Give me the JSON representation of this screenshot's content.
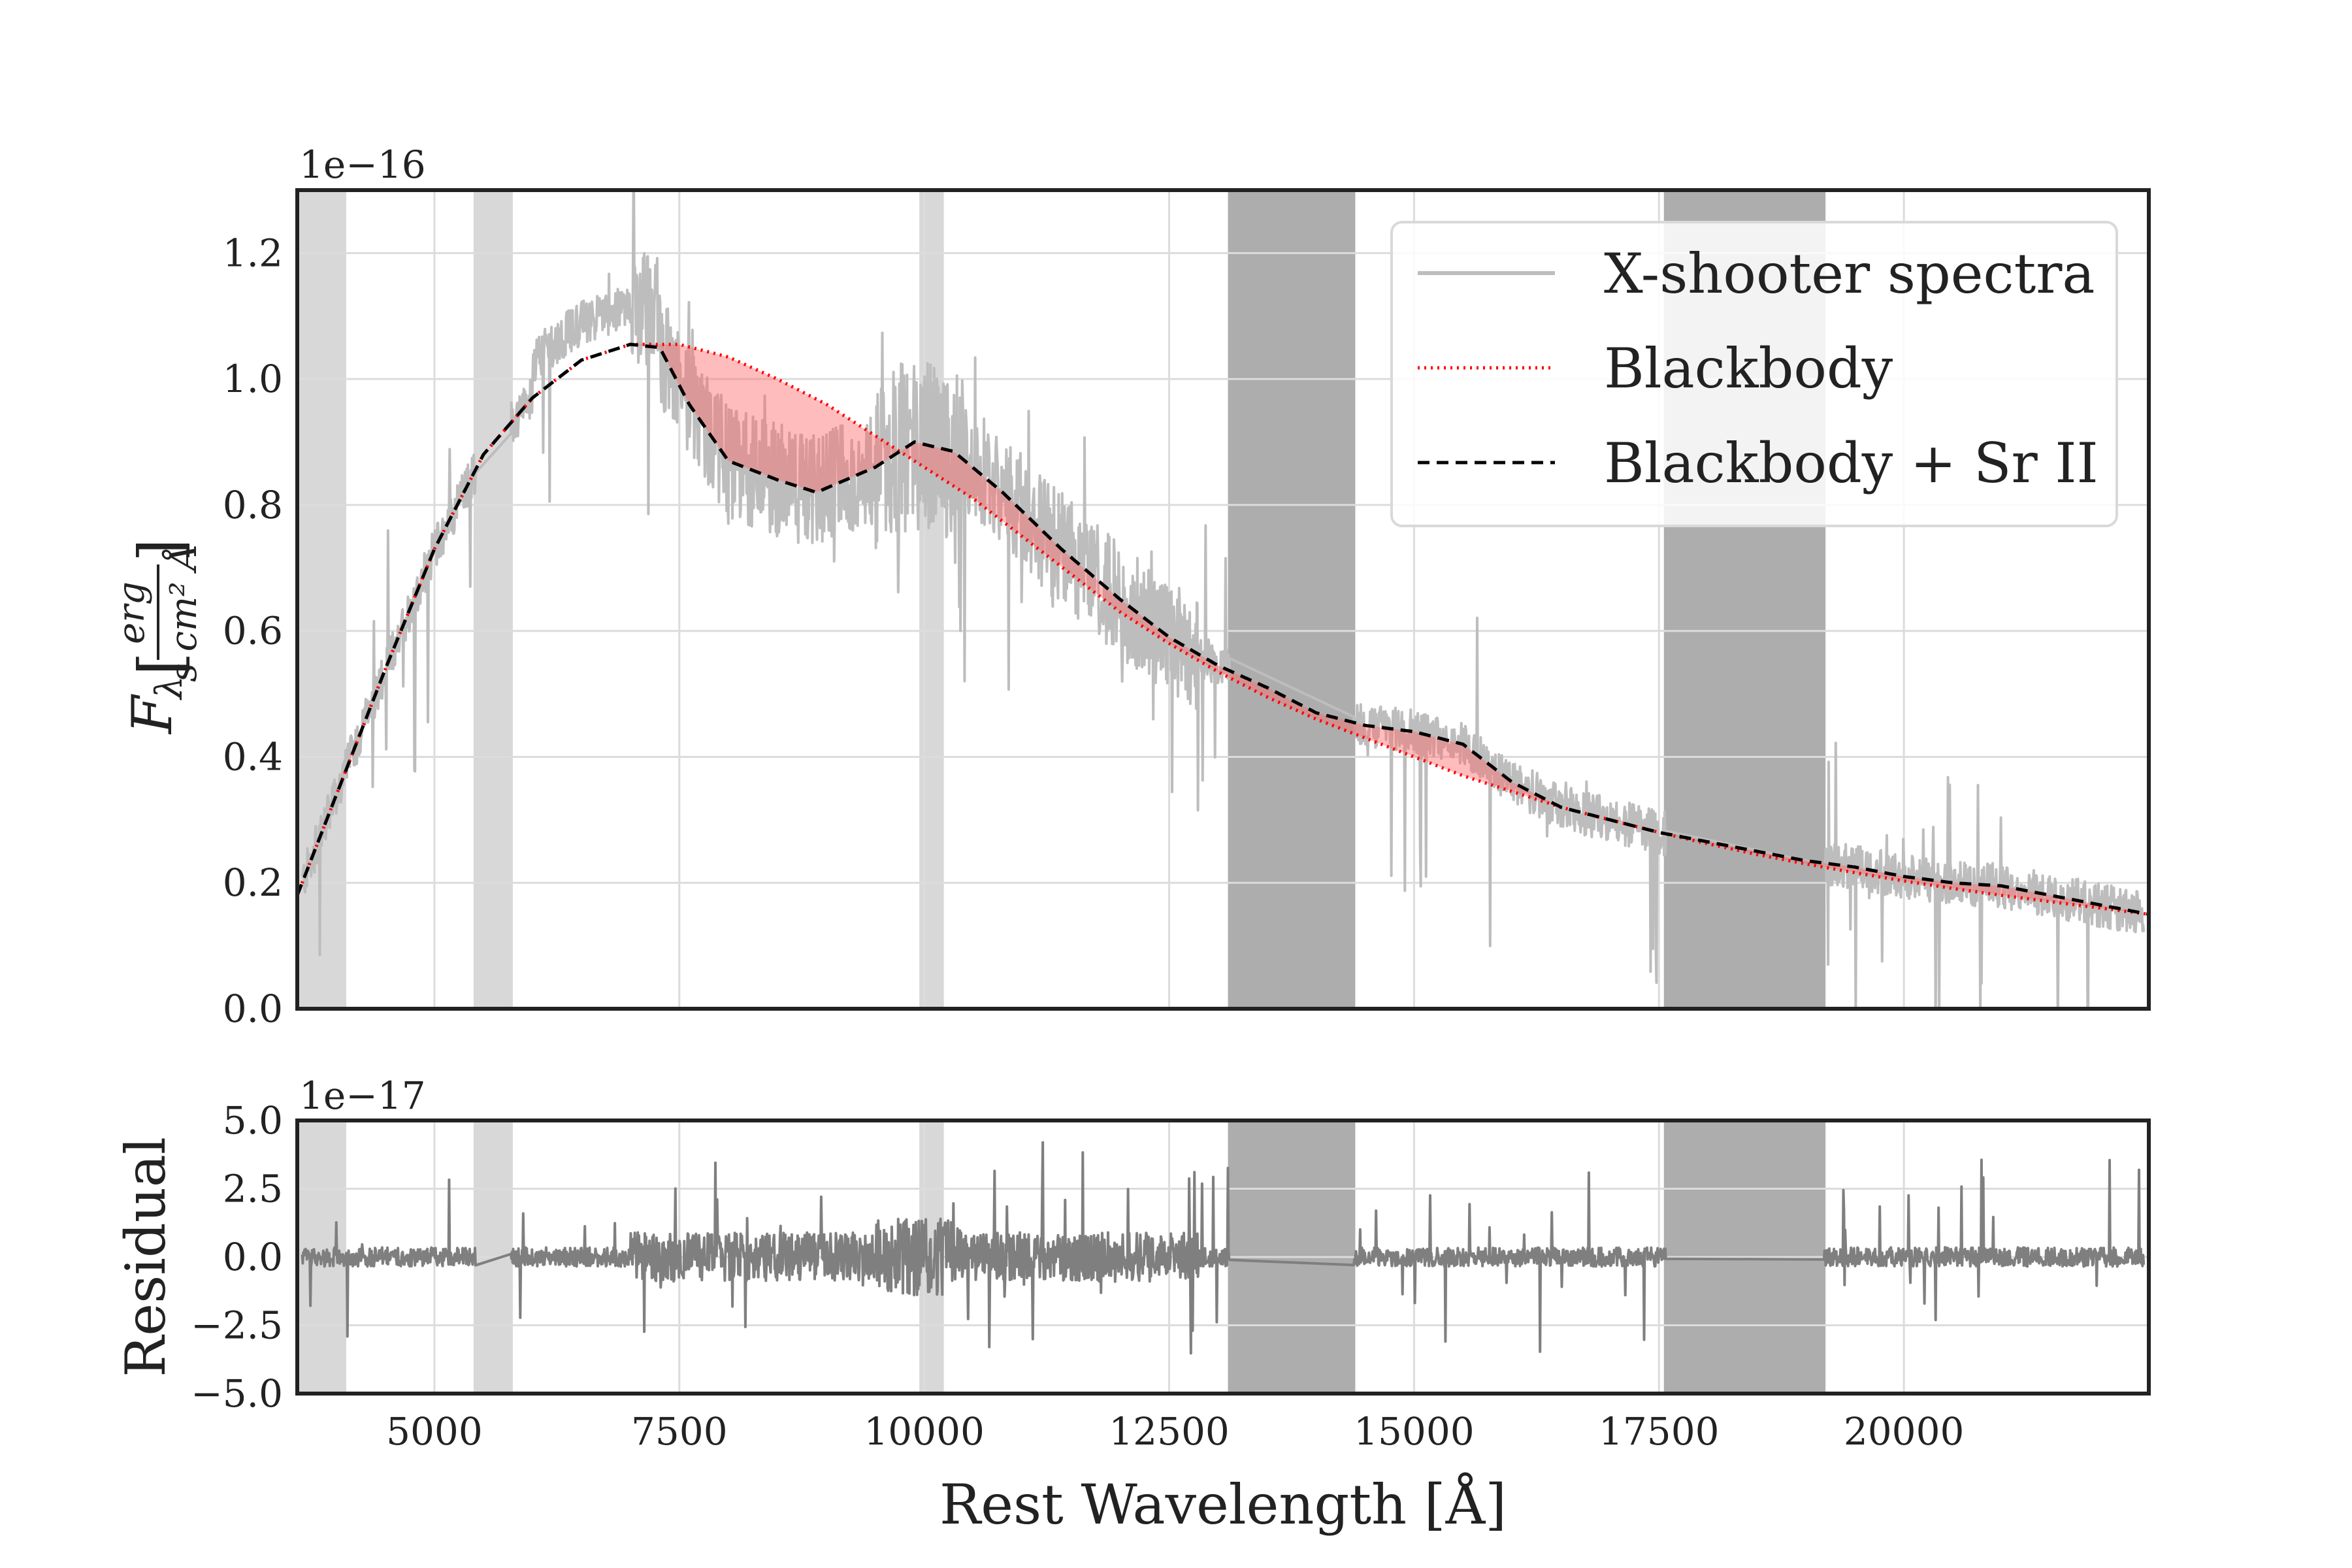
{
  "chart_data": [
    {
      "type": "line",
      "panel": "main",
      "offset_label": "1e−16",
      "ylabel_italic": "F",
      "ylabel_sub": "λ",
      "ylabel_frac_num": "erg",
      "ylabel_frac_den": "s cm² Å",
      "ylim": [
        0.0,
        1.3
      ],
      "xlim": [
        3600,
        22500
      ],
      "yticks": [
        0.0,
        0.2,
        0.4,
        0.6,
        0.8,
        1.0,
        1.2
      ],
      "ytick_labels": [
        "0.0",
        "0.2",
        "0.4",
        "0.6",
        "0.8",
        "1.0",
        "1.2"
      ],
      "xticks": [
        5000,
        7500,
        10000,
        12500,
        15000,
        17500,
        20000
      ],
      "grid": true,
      "legend_position": "top-right",
      "legend": [
        {
          "label": "X-shooter spectra",
          "color": "#bdbdbd",
          "style": "solid"
        },
        {
          "label": "Blackbody",
          "color": "#ff0000",
          "style": "dotted"
        },
        {
          "label": "Blackbody + Sr II",
          "color": "#000000",
          "style": "dashed"
        }
      ],
      "shaded_regions": [
        {
          "x": [
            3600,
            4100
          ],
          "shade": "light"
        },
        {
          "x": [
            5400,
            5800
          ],
          "shade": "light"
        },
        {
          "x": [
            9950,
            10200
          ],
          "shade": "light"
        },
        {
          "x": [
            13100,
            14400
          ],
          "shade": "dark"
        },
        {
          "x": [
            17550,
            19200
          ],
          "shade": "dark"
        }
      ],
      "series": [
        {
          "name": "Blackbody",
          "x": [
            3600,
            4000,
            4500,
            5000,
            5500,
            6000,
            6500,
            7000,
            7500,
            8000,
            8500,
            9000,
            9500,
            10000,
            10500,
            11000,
            11500,
            12000,
            12500,
            13000,
            13500,
            14000,
            14500,
            15000,
            15500,
            16000,
            16500,
            17000,
            17500,
            18000,
            18500,
            19000,
            19500,
            20000,
            20500,
            21000,
            21500,
            22000,
            22500
          ],
          "y": [
            0.18,
            0.34,
            0.54,
            0.73,
            0.88,
            0.97,
            1.03,
            1.055,
            1.055,
            1.035,
            1.0,
            0.96,
            0.91,
            0.86,
            0.81,
            0.75,
            0.69,
            0.63,
            0.58,
            0.535,
            0.495,
            0.46,
            0.43,
            0.4,
            0.37,
            0.345,
            0.32,
            0.3,
            0.28,
            0.262,
            0.245,
            0.23,
            0.216,
            0.203,
            0.191,
            0.18,
            0.17,
            0.16,
            0.15
          ]
        },
        {
          "name": "Blackbody + Sr II",
          "x": [
            3600,
            4000,
            4500,
            5000,
            5500,
            6000,
            6500,
            7000,
            7300,
            7600,
            8000,
            8500,
            8900,
            9500,
            9900,
            10300,
            10800,
            11400,
            12000,
            12500,
            13000,
            13500,
            14000,
            14500,
            15000,
            15500,
            16000,
            16500,
            17000,
            17500,
            18000,
            18500,
            19000,
            19500,
            20000,
            20500,
            21000,
            21500,
            22000,
            22500
          ],
          "y": [
            0.18,
            0.34,
            0.54,
            0.73,
            0.88,
            0.97,
            1.03,
            1.055,
            1.05,
            0.96,
            0.87,
            0.84,
            0.82,
            0.86,
            0.9,
            0.885,
            0.82,
            0.73,
            0.65,
            0.59,
            0.545,
            0.51,
            0.47,
            0.45,
            0.44,
            0.42,
            0.36,
            0.32,
            0.3,
            0.28,
            0.265,
            0.25,
            0.235,
            0.225,
            0.21,
            0.2,
            0.195,
            0.18,
            0.165,
            0.15
          ]
        }
      ]
    },
    {
      "type": "line",
      "panel": "residual",
      "offset_label": "1e−17",
      "ylabel": "Residual",
      "xlabel": "Rest Wavelength [Å]",
      "ylim": [
        -5.0,
        5.0
      ],
      "xlim": [
        3600,
        22500
      ],
      "yticks": [
        -5.0,
        -2.5,
        0.0,
        2.5,
        5.0
      ],
      "ytick_labels": [
        "−5.0",
        "−2.5",
        "0.0",
        "2.5",
        "5.0"
      ],
      "xticks": [
        5000,
        7500,
        10000,
        12500,
        15000,
        17500,
        20000
      ],
      "xtick_labels": [
        "5000",
        "7500",
        "10000",
        "12500",
        "15000",
        "17500",
        "20000"
      ],
      "grid": true,
      "shaded_regions": [
        {
          "x": [
            3600,
            4100
          ],
          "shade": "light"
        },
        {
          "x": [
            5400,
            5800
          ],
          "shade": "light"
        },
        {
          "x": [
            9950,
            10200
          ],
          "shade": "light"
        },
        {
          "x": [
            13100,
            14400
          ],
          "shade": "dark"
        },
        {
          "x": [
            17550,
            19200
          ],
          "shade": "dark"
        }
      ]
    }
  ]
}
